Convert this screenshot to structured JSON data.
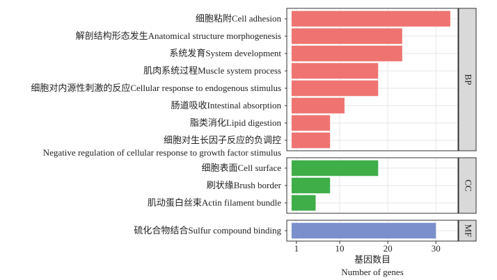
{
  "chart_data": {
    "type": "bar",
    "orientation": "horizontal",
    "x_label_zh": "基因数目",
    "x_label": "Number of genes",
    "xlim": [
      -1,
      34.6
    ],
    "xticks": [
      1,
      10,
      20,
      30
    ],
    "grid": true,
    "facets": [
      {
        "name": "BP",
        "color": "#ef7471",
        "categories": [
          "细胞粘附Cell adhesion",
          "解剖结构形态发生Anatomical structure morphogenesis",
          "系统发育System development",
          "肌肉系统过程Muscle system process",
          "细胞对内源性刺激的反应Cellular response to endogenous stimulus",
          "肠道吸收Intestinal absorption",
          "脂类消化Lipid digestion",
          "细胞对生长因子反应的负调控\nNegative regulation of cellular response to growth factor stimulus"
        ],
        "values": [
          33,
          23,
          23,
          18,
          18,
          11,
          8,
          8
        ]
      },
      {
        "name": "CC",
        "color": "#3fae49",
        "categories": [
          "细胞表面Cell surface",
          "刷状缘Brush border",
          "肌动蛋白丝束Actin filament bundle"
        ],
        "values": [
          18,
          8,
          5
        ]
      },
      {
        "name": "MF",
        "color": "#7a8fcb",
        "categories": [
          "硫化合物结合Sulfur compound binding"
        ],
        "values": [
          30
        ]
      }
    ]
  }
}
